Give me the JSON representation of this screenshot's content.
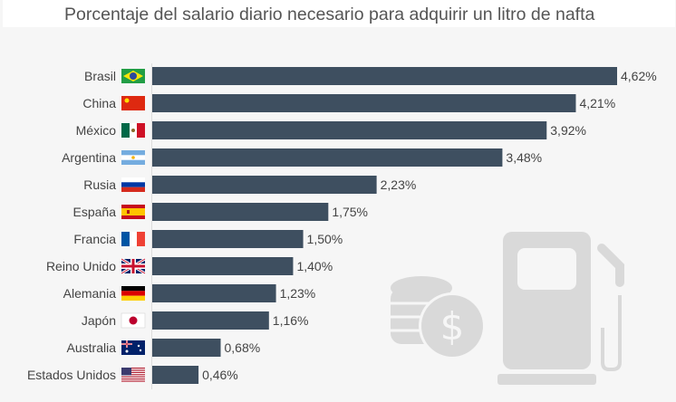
{
  "chart_data": {
    "type": "bar",
    "orientation": "horizontal",
    "title": "Porcentaje del salario diario necesario para adquirir un litro de nafta",
    "categories": [
      "Brasil",
      "China",
      "México",
      "Argentina",
      "Rusia",
      "España",
      "Francia",
      "Reino Unido",
      "Alemania",
      "Japón",
      "Australia",
      "Estados Unidos"
    ],
    "values": [
      4.62,
      4.21,
      3.92,
      3.48,
      2.23,
      1.75,
      1.5,
      1.4,
      1.23,
      1.16,
      0.68,
      0.46
    ],
    "value_labels": [
      "4,62%",
      "4,21%",
      "3,92%",
      "3,48%",
      "2,23%",
      "1,75%",
      "1,50%",
      "1,40%",
      "1,23%",
      "1,16%",
      "0,68%",
      "0,46%"
    ],
    "xlim": [
      0,
      4.62
    ],
    "grid": false,
    "bar_color": "#3e4f60",
    "flag_icons": [
      "flag-brazil",
      "flag-china",
      "flag-mexico",
      "flag-argentina",
      "flag-russia",
      "flag-spain",
      "flag-france",
      "flag-uk",
      "flag-germany",
      "flag-japan",
      "flag-australia",
      "flag-usa"
    ],
    "decorations": [
      "coins-dollar-icon",
      "fuel-pump-icon"
    ]
  }
}
